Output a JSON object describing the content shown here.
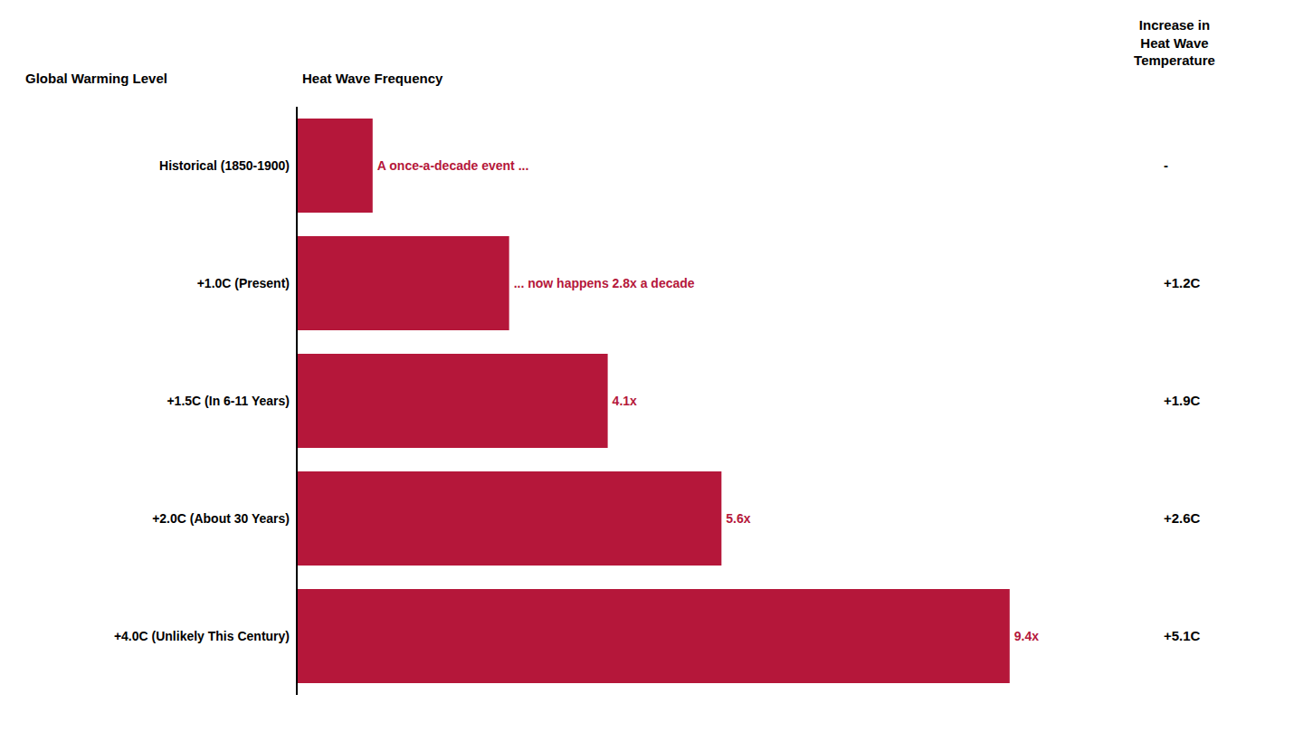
{
  "chart_data": {
    "type": "bar",
    "orientation": "horizontal",
    "categories": [
      "Historical (1850-1900)",
      "+1.0C (Present)",
      "+1.5C (In 6-11 Years)",
      "+2.0C (About 30 Years)",
      "+4.0C (Unlikely This Century)"
    ],
    "values": [
      1.0,
      2.8,
      4.1,
      5.6,
      9.4
    ],
    "value_labels": [
      "A once-a-decade event ...",
      "... now happens 2.8x a decade",
      "4.1x",
      "5.6x",
      "9.4x"
    ],
    "data_labels": true,
    "color": "#b5173a",
    "xlim": [
      0,
      10.5
    ],
    "tick_labels": "y",
    "grid": false,
    "column_headers": [
      "Global Warming Level",
      "Heat Wave Frequency",
      "Increase in\nHeat Wave\nTemperature"
    ],
    "right_labels": [
      "-",
      "+1.2C",
      "+1.9C",
      "+2.6C",
      "+5.1C"
    ]
  }
}
